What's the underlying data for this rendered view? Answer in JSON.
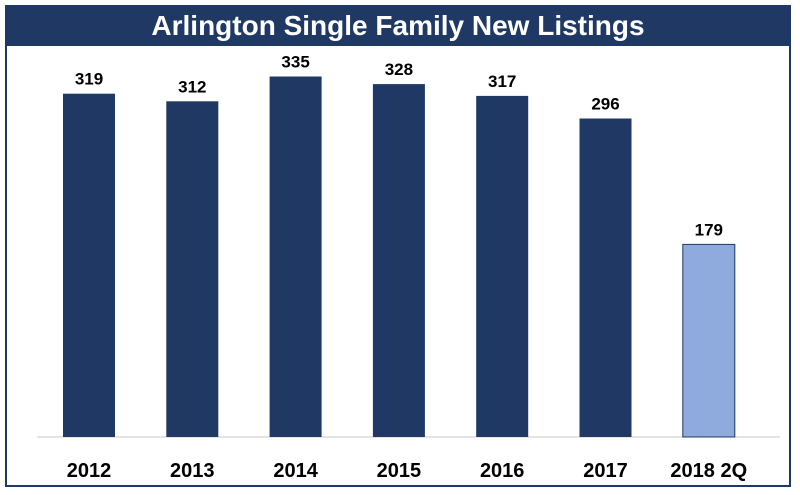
{
  "chart_data": {
    "type": "bar",
    "title": "Arlington Single Family New Listings",
    "categories": [
      "2012",
      "2013",
      "2014",
      "2015",
      "2016",
      "2017",
      "2018 2Q"
    ],
    "values": [
      319,
      312,
      335,
      328,
      317,
      296,
      179
    ],
    "data_labels": [
      "319",
      "312",
      "335",
      "328",
      "317",
      "296",
      "179"
    ],
    "xlabel": "",
    "ylabel": "",
    "ylim": [
      0,
      355
    ],
    "grid": false,
    "legend": "none",
    "colors": {
      "bar": "#1f3864",
      "highlight_bar": "#8faadc",
      "highlight_border": "#1f3864",
      "title_background": "#1f3864",
      "title_text": "#ffffff",
      "baseline": "#c8c8c8"
    },
    "highlight_index": 6
  }
}
